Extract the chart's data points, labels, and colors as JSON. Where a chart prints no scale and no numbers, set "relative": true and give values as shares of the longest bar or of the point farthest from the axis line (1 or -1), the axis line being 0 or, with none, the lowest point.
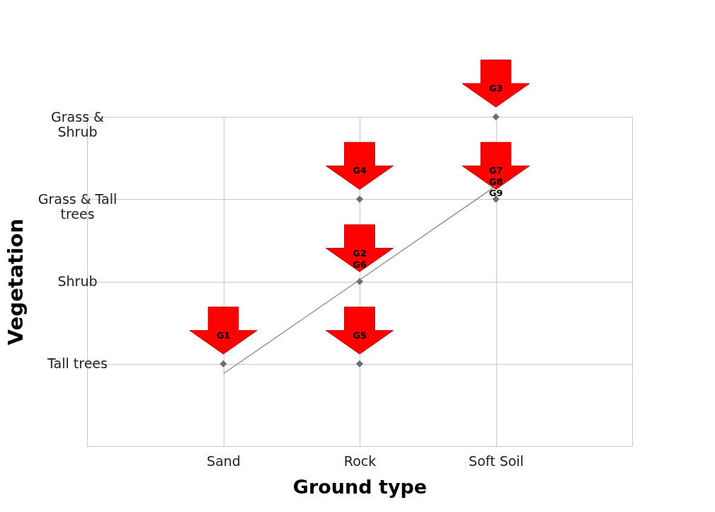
{
  "chart_data": {
    "type": "scatter",
    "xlabel": "Ground type",
    "ylabel": "Vegetation",
    "relative": true,
    "categories": [
      null,
      "Sand",
      "Rock",
      "Soft Soil",
      null
    ],
    "y_categories": [
      "Grass &\nShrub",
      "Grass & Tall\ntrees",
      "Shrub",
      "Tall trees",
      null
    ],
    "grid": true,
    "series": [
      {
        "type": "scatter",
        "marker": "diamond",
        "color": "#6d6d6d",
        "x": [
          "Sand",
          "Rock",
          "Rock",
          "Rock",
          "Soft Soil",
          "Soft Soil"
        ],
        "values": [
          0.25,
          0.25,
          0.5,
          0.75,
          0.75,
          1
        ]
      },
      {
        "type": "line",
        "color": "#8a8a8a",
        "x": [
          "Sand",
          "Soft Soil"
        ],
        "values": [
          0.22,
          0.79
        ]
      }
    ],
    "annotations": [
      {
        "text": "G1",
        "x": "Sand",
        "y": 0.25
      },
      {
        "text": "G5",
        "x": "Rock",
        "y": 0.25
      },
      {
        "text": "G2\nG6",
        "x": "Rock",
        "y": 0.5
      },
      {
        "text": "G4",
        "x": "Rock",
        "y": 0.75
      },
      {
        "text": "G7\nG8\nG9",
        "x": "Soft Soil",
        "y": 0.75
      },
      {
        "text": "G3",
        "x": "Soft Soil",
        "y": 1
      }
    ]
  }
}
